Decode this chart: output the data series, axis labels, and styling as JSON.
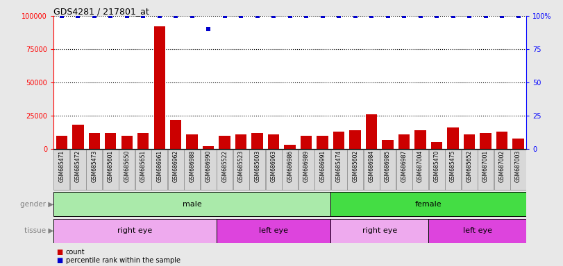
{
  "title": "GDS4281 / 217801_at",
  "samples": [
    "GSM685471",
    "GSM685472",
    "GSM685473",
    "GSM685601",
    "GSM685650",
    "GSM685651",
    "GSM686961",
    "GSM686962",
    "GSM686988",
    "GSM686990",
    "GSM685522",
    "GSM685523",
    "GSM685603",
    "GSM686963",
    "GSM686986",
    "GSM686989",
    "GSM686991",
    "GSM685474",
    "GSM685602",
    "GSM686984",
    "GSM686985",
    "GSM686987",
    "GSM687004",
    "GSM685470",
    "GSM685475",
    "GSM685652",
    "GSM687001",
    "GSM687002",
    "GSM687003"
  ],
  "counts": [
    10000,
    18000,
    12000,
    12000,
    10000,
    12000,
    92000,
    22000,
    11000,
    2000,
    10000,
    11000,
    12000,
    11000,
    3000,
    10000,
    10000,
    13000,
    14000,
    26000,
    7000,
    11000,
    14000,
    5000,
    16000,
    11000,
    12000,
    13000,
    8000
  ],
  "percentile_ranks": [
    100,
    100,
    100,
    100,
    100,
    100,
    100,
    100,
    100,
    90,
    100,
    100,
    100,
    100,
    100,
    100,
    100,
    100,
    100,
    100,
    100,
    100,
    100,
    100,
    100,
    100,
    100,
    100,
    100
  ],
  "bar_color": "#cc0000",
  "dot_color": "#0000cc",
  "ylim_left": [
    0,
    100000
  ],
  "ylim_right": [
    0,
    100
  ],
  "yticks_left": [
    0,
    25000,
    50000,
    75000,
    100000
  ],
  "ytick_labels_left": [
    "0",
    "25000",
    "50000",
    "75000",
    "100000"
  ],
  "yticks_right": [
    0,
    25,
    50,
    75,
    100
  ],
  "ytick_labels_right": [
    "0",
    "25",
    "50",
    "75",
    "100%"
  ],
  "gender_groups": [
    {
      "label": "male",
      "start": 0,
      "end": 17,
      "color": "#aaeaaa"
    },
    {
      "label": "female",
      "start": 17,
      "end": 29,
      "color": "#44dd44"
    }
  ],
  "tissue_groups": [
    {
      "label": "right eye",
      "start": 0,
      "end": 10,
      "color": "#eeaaee"
    },
    {
      "label": "left eye",
      "start": 10,
      "end": 17,
      "color": "#dd44dd"
    },
    {
      "label": "right eye",
      "start": 17,
      "end": 23,
      "color": "#eeaaee"
    },
    {
      "label": "left eye",
      "start": 23,
      "end": 29,
      "color": "#dd44dd"
    }
  ],
  "gender_label": "gender",
  "tissue_label": "tissue",
  "legend_count_label": "count",
  "legend_percentile_label": "percentile rank within the sample",
  "background_color": "#e8e8e8",
  "plot_bg_color": "#ffffff",
  "xtick_box_color": "#d8d8d8",
  "xtick_box_edge": "#888888"
}
